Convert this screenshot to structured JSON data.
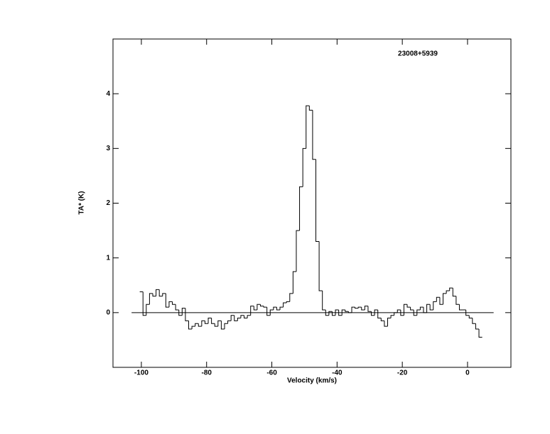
{
  "chart_data": {
    "type": "step",
    "title": "23008+5939",
    "xlabel": "Velocity (km/s)",
    "ylabel": "TA* (K)",
    "xlim": [
      -108.7,
      13.3
    ],
    "ylim": [
      -1,
      5
    ],
    "xticks": [
      -100,
      -80,
      -60,
      -40,
      -20,
      0
    ],
    "yticks": [
      0,
      1,
      2,
      3,
      4
    ],
    "color": "#000000",
    "hline": {
      "y": 0,
      "x": [
        -103,
        8
      ]
    },
    "x": [
      -100,
      -99,
      -98,
      -97,
      -96,
      -95,
      -94,
      -93,
      -92,
      -91,
      -90,
      -89,
      -88,
      -87,
      -86,
      -85,
      -84,
      -83,
      -82,
      -81,
      -80,
      -79,
      -78,
      -77,
      -76,
      -75,
      -74,
      -73,
      -72,
      -71,
      -70,
      -69,
      -68,
      -67,
      -66,
      -65,
      -64,
      -63,
      -62,
      -61,
      -60,
      -59,
      -58,
      -57,
      -56,
      -55,
      -54,
      -53,
      -52,
      -51,
      -50,
      -49,
      -48,
      -47,
      -46,
      -45,
      -44,
      -43,
      -42,
      -41,
      -40,
      -39,
      -38,
      -37,
      -36,
      -35,
      -34,
      -33,
      -32,
      -31,
      -30,
      -29,
      -28,
      -27,
      -26,
      -25,
      -24,
      -23,
      -22,
      -21,
      -20,
      -19,
      -18,
      -17,
      -16,
      -15,
      -14,
      -13,
      -12,
      -11,
      -10,
      -9,
      -8,
      -7,
      -6,
      -5,
      -4,
      -3,
      -2,
      -1,
      0,
      1,
      2,
      3,
      4
    ],
    "values": [
      0.38,
      -0.05,
      0.15,
      0.35,
      0.3,
      0.42,
      0.3,
      0.35,
      0.1,
      0.2,
      0.15,
      0.05,
      -0.05,
      0.08,
      -0.15,
      -0.3,
      -0.25,
      -0.2,
      -0.25,
      -0.15,
      -0.2,
      -0.1,
      -0.2,
      -0.25,
      -0.15,
      -0.3,
      -0.2,
      -0.15,
      -0.05,
      -0.15,
      -0.1,
      -0.05,
      -0.1,
      -0.05,
      0.12,
      0.05,
      0.15,
      0.12,
      0.1,
      -0.05,
      0.05,
      0.1,
      0.05,
      0.1,
      0.18,
      0.2,
      0.35,
      0.75,
      1.5,
      2.3,
      3.0,
      3.78,
      3.7,
      2.8,
      1.3,
      0.4,
      0.05,
      -0.05,
      0.02,
      -0.05,
      0.05,
      -0.05,
      0.05,
      0.02,
      0.0,
      0.1,
      0.08,
      0.1,
      0.05,
      0.12,
      0.02,
      -0.05,
      0.05,
      -0.1,
      -0.15,
      -0.25,
      -0.1,
      -0.05,
      0.0,
      0.05,
      -0.05,
      0.15,
      0.1,
      0.05,
      -0.05,
      0.05,
      0.1,
      0.0,
      0.15,
      0.05,
      0.2,
      0.28,
      0.15,
      0.35,
      0.4,
      0.45,
      0.3,
      0.15,
      0.05,
      0.05,
      -0.05,
      -0.1,
      -0.2,
      -0.3,
      -0.45
    ]
  }
}
